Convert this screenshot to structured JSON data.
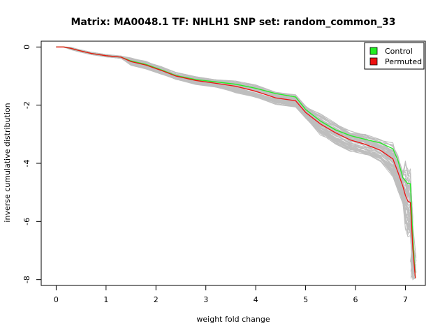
{
  "chart_data": {
    "type": "line",
    "title": "Matrix: MA0048.1 TF: NHLH1 SNP set: random_common_33",
    "xlabel": "weight fold change",
    "ylabel": "inverse cumulative distribution",
    "xlim": [
      -0.3,
      7.4
    ],
    "ylim": [
      -8.2,
      0.2
    ],
    "xticks": [
      "0",
      "1",
      "2",
      "3",
      "4",
      "5",
      "6",
      "7"
    ],
    "yticks": [
      "0",
      "-2",
      "-4",
      "-6",
      "-8"
    ],
    "legend": {
      "position": "top-right",
      "entries": [
        "Control",
        "Permuted"
      ]
    },
    "colors": {
      "control": "#22ee22",
      "permuted": "#ee1111",
      "background_series": "#bebebe"
    },
    "background_series_count": 60,
    "series": [
      {
        "name": "Control",
        "x": [
          0,
          0.15,
          0.3,
          0.45,
          0.7,
          1.0,
          1.3,
          1.5,
          1.8,
          2.1,
          2.4,
          2.8,
          3.2,
          3.6,
          4.0,
          4.4,
          4.8,
          5.0,
          5.3,
          5.6,
          5.9,
          6.2,
          6.5,
          6.75,
          6.85,
          6.95,
          7.0,
          7.05,
          7.1,
          7.15,
          7.2
        ],
        "y": [
          0,
          0,
          -0.05,
          -0.12,
          -0.22,
          -0.3,
          -0.35,
          -0.48,
          -0.6,
          -0.78,
          -0.98,
          -1.12,
          -1.2,
          -1.28,
          -1.42,
          -1.6,
          -1.72,
          -2.15,
          -2.55,
          -2.85,
          -3.05,
          -3.18,
          -3.3,
          -3.5,
          -3.9,
          -4.5,
          -4.6,
          -4.7,
          -4.7,
          -6.6,
          -7.95
        ]
      },
      {
        "name": "Permuted",
        "x": [
          0,
          0.15,
          0.3,
          0.45,
          0.7,
          1.0,
          1.3,
          1.5,
          1.8,
          2.1,
          2.4,
          2.8,
          3.2,
          3.6,
          4.0,
          4.4,
          4.8,
          5.0,
          5.3,
          5.6,
          5.9,
          6.2,
          6.5,
          6.75,
          6.85,
          6.95,
          7.0,
          7.05,
          7.1,
          7.15,
          7.2
        ],
        "y": [
          0,
          0,
          -0.05,
          -0.12,
          -0.22,
          -0.3,
          -0.35,
          -0.5,
          -0.62,
          -0.8,
          -1.0,
          -1.15,
          -1.25,
          -1.35,
          -1.52,
          -1.75,
          -1.85,
          -2.25,
          -2.65,
          -2.95,
          -3.2,
          -3.35,
          -3.55,
          -3.85,
          -4.3,
          -4.8,
          -5.1,
          -5.3,
          -5.35,
          -6.95,
          -7.95
        ]
      }
    ]
  }
}
